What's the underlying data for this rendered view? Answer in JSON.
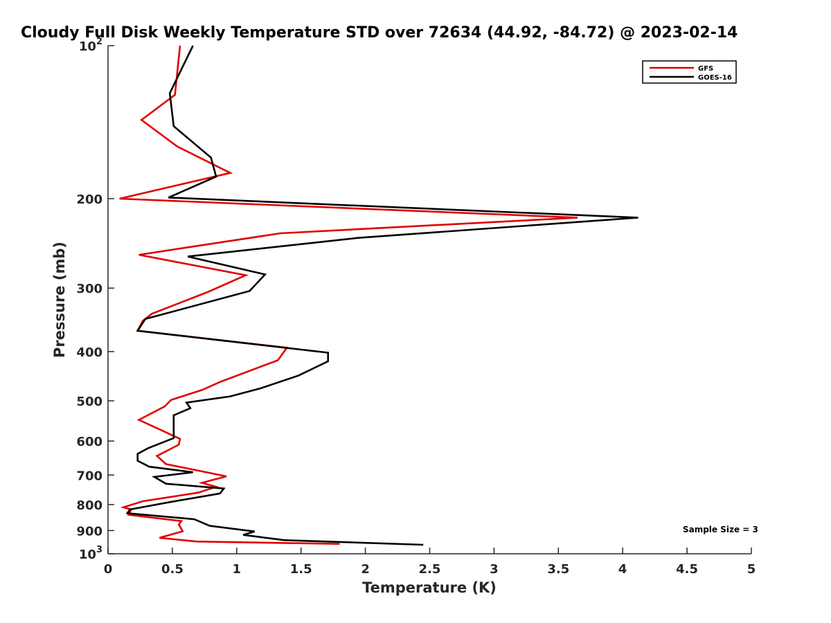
{
  "chart_data": {
    "type": "line",
    "title": "Cloudy Full Disk Weekly Temperature STD over 72634 (44.92, -84.72) @ 2023-02-14",
    "xlabel": "Temperature (K)",
    "ylabel": "Pressure (mb)",
    "xlim": [
      0,
      5
    ],
    "ylim": [
      100,
      1000
    ],
    "y_scale": "log",
    "y_reversed": true,
    "grid": false,
    "legend_position": "top-right",
    "x_ticks": [
      0,
      0.5,
      1,
      1.5,
      2,
      2.5,
      3,
      3.5,
      4,
      4.5,
      5
    ],
    "x_tick_labels": [
      "0",
      "0.5",
      "1",
      "1.5",
      "2",
      "2.5",
      "3",
      "3.5",
      "4",
      "4.5",
      "5"
    ],
    "y_ticks": [
      {
        "value": 100,
        "base": "10",
        "exp": "2"
      },
      {
        "value": 200,
        "label": "200"
      },
      {
        "value": 300,
        "label": "300"
      },
      {
        "value": 400,
        "label": "400"
      },
      {
        "value": 500,
        "label": "500"
      },
      {
        "value": 600,
        "label": "600"
      },
      {
        "value": 700,
        "label": "700"
      },
      {
        "value": 800,
        "label": "800"
      },
      {
        "value": 900,
        "label": "900"
      },
      {
        "value": 1000,
        "base": "10",
        "exp": "3"
      }
    ],
    "series": [
      {
        "name": "GFS",
        "color": "#e00000",
        "points": [
          [
            0.56,
            100
          ],
          [
            0.52,
            125
          ],
          [
            0.26,
            140
          ],
          [
            0.54,
            158
          ],
          [
            0.95,
            178
          ],
          [
            0.09,
            200
          ],
          [
            3.65,
            218
          ],
          [
            1.34,
            234
          ],
          [
            0.24,
            258
          ],
          [
            1.07,
            283
          ],
          [
            0.78,
            305
          ],
          [
            0.34,
            337
          ],
          [
            0.27,
            348
          ],
          [
            0.23,
            364
          ],
          [
            1.39,
            393
          ],
          [
            1.32,
            416
          ],
          [
            0.88,
            458
          ],
          [
            0.73,
            476
          ],
          [
            0.49,
            498
          ],
          [
            0.44,
            513
          ],
          [
            0.24,
            545
          ],
          [
            0.56,
            594
          ],
          [
            0.55,
            610
          ],
          [
            0.38,
            642
          ],
          [
            0.45,
            666
          ],
          [
            0.92,
            704
          ],
          [
            0.73,
            725
          ],
          [
            0.84,
            738
          ],
          [
            0.7,
            758
          ],
          [
            0.27,
            788
          ],
          [
            0.12,
            810
          ],
          [
            0.18,
            818
          ],
          [
            0.16,
            838
          ],
          [
            0.57,
            862
          ],
          [
            0.55,
            876
          ],
          [
            0.58,
            903
          ],
          [
            0.4,
            930
          ],
          [
            0.69,
            946
          ],
          [
            1.8,
            956
          ]
        ]
      },
      {
        "name": "GOES-16",
        "color": "#000000",
        "points": [
          [
            0.66,
            100
          ],
          [
            0.48,
            124
          ],
          [
            0.51,
            144
          ],
          [
            0.8,
            166
          ],
          [
            0.84,
            181
          ],
          [
            0.47,
            199
          ],
          [
            4.12,
            218
          ],
          [
            1.94,
            239
          ],
          [
            0.62,
            260
          ],
          [
            1.22,
            282
          ],
          [
            1.1,
            304
          ],
          [
            0.29,
            345
          ],
          [
            0.23,
            364
          ],
          [
            1.71,
            402
          ],
          [
            1.71,
            418
          ],
          [
            1.48,
            446
          ],
          [
            1.19,
            472
          ],
          [
            0.95,
            490
          ],
          [
            0.61,
            504
          ],
          [
            0.64,
            517
          ],
          [
            0.51,
            534
          ],
          [
            0.51,
            592
          ],
          [
            0.31,
            620
          ],
          [
            0.23,
            636
          ],
          [
            0.23,
            656
          ],
          [
            0.32,
            674
          ],
          [
            0.66,
            691
          ],
          [
            0.36,
            706
          ],
          [
            0.45,
            728
          ],
          [
            0.9,
            744
          ],
          [
            0.87,
            761
          ],
          [
            0.47,
            792
          ],
          [
            0.17,
            818
          ],
          [
            0.15,
            832
          ],
          [
            0.67,
            855
          ],
          [
            0.79,
            881
          ],
          [
            1.14,
            904
          ],
          [
            1.05,
            918
          ],
          [
            1.37,
            940
          ],
          [
            2.45,
            960
          ]
        ]
      }
    ],
    "annotations": [
      {
        "text": "Sample Size = 3",
        "x": 4.76,
        "y": 908
      }
    ]
  }
}
